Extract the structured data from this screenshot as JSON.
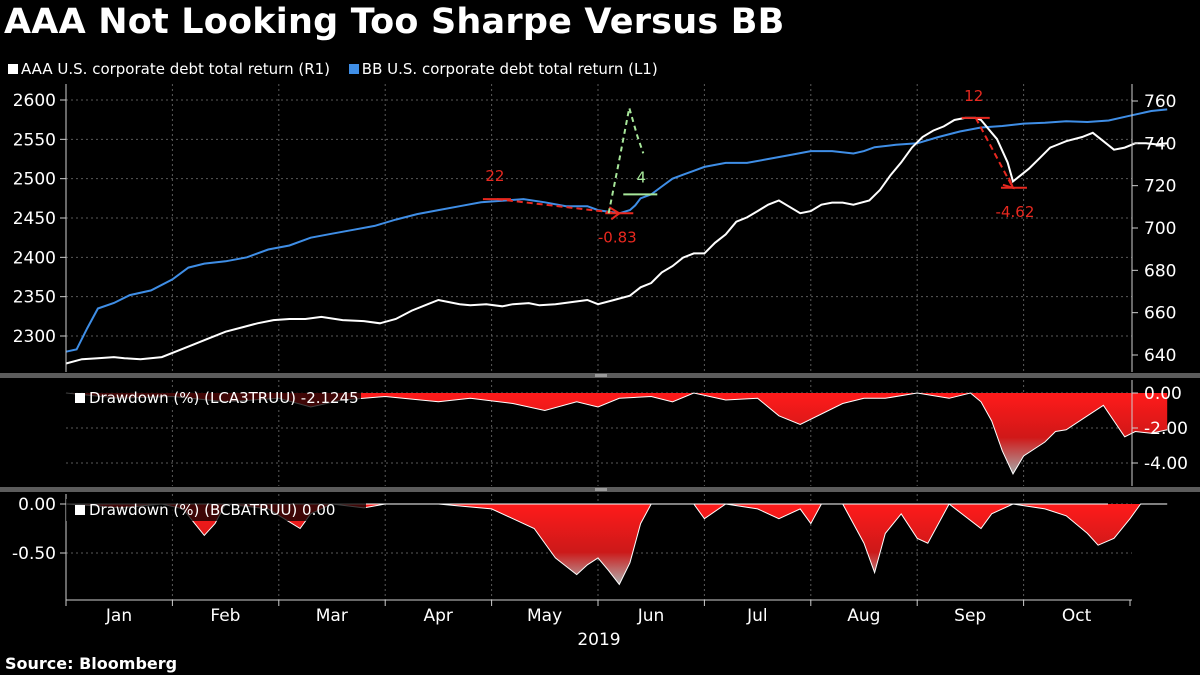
{
  "title": "AAA Not Looking Too Sharpe Versus BB",
  "source": "Source: Bloomberg",
  "colors": {
    "aaa": "#ffffff",
    "bb": "#3f8ee6",
    "drawdown": "#ff1a1a",
    "annotation_red": "#e8281f",
    "annotation_green": "#a7e79a"
  },
  "chart_data": [
    {
      "type": "line",
      "name": "main",
      "x_labels": [
        "Jan",
        "Feb",
        "Mar",
        "Apr",
        "May",
        "Jun",
        "Jul",
        "Aug",
        "Sep",
        "Oct"
      ],
      "x_year_label": "2019",
      "legend": [
        {
          "name": "AAA U.S. corporate debt total return (R1)",
          "color": "#ffffff"
        },
        {
          "name": "BB U.S. corporate debt total return (L1)",
          "color": "#3f8ee6"
        }
      ],
      "left_axis": {
        "ylim": [
          2275,
          2610
        ],
        "ticks": [
          2300,
          2350,
          2400,
          2450,
          2500,
          2550,
          2600
        ]
      },
      "right_axis": {
        "ylim": [
          629,
          763
        ],
        "ticks": [
          640,
          660,
          680,
          700,
          720,
          740,
          760
        ]
      },
      "series": [
        {
          "name": "AAA U.S. corporate debt total return (R1)",
          "axis": "right",
          "points": [
            [
              0.0,
              636
            ],
            [
              0.15,
              638
            ],
            [
              0.3,
              638.5
            ],
            [
              0.45,
              639
            ],
            [
              0.55,
              638.5
            ],
            [
              0.7,
              638
            ],
            [
              0.9,
              639
            ],
            [
              1.05,
              642
            ],
            [
              1.2,
              645
            ],
            [
              1.35,
              648
            ],
            [
              1.5,
              651
            ],
            [
              1.65,
              653
            ],
            [
              1.8,
              655
            ],
            [
              1.95,
              656.5
            ],
            [
              2.1,
              657
            ],
            [
              2.25,
              657
            ],
            [
              2.4,
              658
            ],
            [
              2.6,
              656.5
            ],
            [
              2.8,
              656
            ],
            [
              2.95,
              655
            ],
            [
              3.1,
              657
            ],
            [
              3.25,
              661
            ],
            [
              3.4,
              664
            ],
            [
              3.5,
              666
            ],
            [
              3.6,
              665
            ],
            [
              3.7,
              664
            ],
            [
              3.8,
              663.5
            ],
            [
              3.95,
              664
            ],
            [
              4.1,
              663
            ],
            [
              4.2,
              664
            ],
            [
              4.35,
              664.5
            ],
            [
              4.45,
              663.5
            ],
            [
              4.6,
              664
            ],
            [
              4.75,
              665
            ],
            [
              4.9,
              666
            ],
            [
              5.0,
              664
            ],
            [
              5.15,
              666
            ],
            [
              5.3,
              668
            ],
            [
              5.4,
              672
            ],
            [
              5.5,
              674
            ],
            [
              5.6,
              679
            ],
            [
              5.7,
              682
            ],
            [
              5.8,
              686
            ],
            [
              5.9,
              688
            ],
            [
              6.0,
              688
            ],
            [
              6.1,
              693
            ],
            [
              6.2,
              697
            ],
            [
              6.3,
              703
            ],
            [
              6.4,
              705
            ],
            [
              6.5,
              708
            ],
            [
              6.6,
              711
            ],
            [
              6.7,
              713
            ],
            [
              6.8,
              710
            ],
            [
              6.9,
              707
            ],
            [
              7.0,
              708
            ],
            [
              7.1,
              711
            ],
            [
              7.2,
              712
            ],
            [
              7.3,
              712
            ],
            [
              7.4,
              711
            ],
            [
              7.55,
              713
            ],
            [
              7.65,
              718
            ],
            [
              7.75,
              725
            ],
            [
              7.85,
              731
            ],
            [
              7.95,
              738
            ],
            [
              8.05,
              743
            ],
            [
              8.15,
              746
            ],
            [
              8.25,
              748
            ],
            [
              8.35,
              751
            ],
            [
              8.45,
              752
            ],
            [
              8.55,
              752
            ],
            [
              8.6,
              751
            ],
            [
              8.7,
              745
            ],
            [
              8.75,
              742
            ],
            [
              8.85,
              731
            ],
            [
              8.9,
              722
            ],
            [
              8.95,
              724
            ],
            [
              9.05,
              728
            ],
            [
              9.15,
              733
            ],
            [
              9.25,
              738
            ],
            [
              9.3,
              739
            ],
            [
              9.4,
              741
            ],
            [
              9.55,
              743
            ],
            [
              9.65,
              745
            ],
            [
              9.75,
              741
            ],
            [
              9.85,
              737
            ],
            [
              9.95,
              738
            ],
            [
              10.05,
              740
            ],
            [
              10.15,
              740
            ],
            [
              10.25,
              739.5
            ],
            [
              10.35,
              740
            ]
          ]
        },
        {
          "name": "BB U.S. corporate debt total return (L1)",
          "axis": "left",
          "points": [
            [
              0.0,
              2280
            ],
            [
              0.1,
              2283
            ],
            [
              0.2,
              2310
            ],
            [
              0.3,
              2335
            ],
            [
              0.45,
              2342
            ],
            [
              0.6,
              2352
            ],
            [
              0.8,
              2358
            ],
            [
              1.0,
              2372
            ],
            [
              1.15,
              2387
            ],
            [
              1.3,
              2392
            ],
            [
              1.5,
              2395
            ],
            [
              1.7,
              2400
            ],
            [
              1.9,
              2410
            ],
            [
              2.1,
              2415
            ],
            [
              2.3,
              2425
            ],
            [
              2.5,
              2430
            ],
            [
              2.7,
              2435
            ],
            [
              2.9,
              2440
            ],
            [
              3.1,
              2448
            ],
            [
              3.3,
              2455
            ],
            [
              3.5,
              2460
            ],
            [
              3.7,
              2465
            ],
            [
              3.9,
              2470
            ],
            [
              4.1,
              2472
            ],
            [
              4.3,
              2474
            ],
            [
              4.5,
              2470
            ],
            [
              4.7,
              2465
            ],
            [
              4.9,
              2465
            ],
            [
              5.0,
              2460
            ],
            [
              5.1,
              2458
            ],
            [
              5.2,
              2456
            ],
            [
              5.3,
              2460
            ],
            [
              5.35,
              2466
            ],
            [
              5.4,
              2475
            ],
            [
              5.5,
              2480
            ],
            [
              5.6,
              2490
            ],
            [
              5.7,
              2500
            ],
            [
              5.8,
              2505
            ],
            [
              5.9,
              2510
            ],
            [
              6.0,
              2515
            ],
            [
              6.2,
              2520
            ],
            [
              6.4,
              2520
            ],
            [
              6.6,
              2525
            ],
            [
              6.8,
              2530
            ],
            [
              7.0,
              2535
            ],
            [
              7.2,
              2535
            ],
            [
              7.4,
              2532
            ],
            [
              7.5,
              2535
            ],
            [
              7.6,
              2540
            ],
            [
              7.8,
              2543
            ],
            [
              8.0,
              2545
            ],
            [
              8.2,
              2553
            ],
            [
              8.4,
              2560
            ],
            [
              8.6,
              2565
            ],
            [
              8.8,
              2567
            ],
            [
              9.0,
              2570
            ],
            [
              9.2,
              2571
            ],
            [
              9.4,
              2573
            ],
            [
              9.6,
              2572
            ],
            [
              9.8,
              2574
            ],
            [
              10.0,
              2580
            ],
            [
              10.2,
              2586
            ],
            [
              10.35,
              2588
            ]
          ]
        }
      ],
      "annotations": [
        {
          "label": "22",
          "color": "red",
          "from": [
            4.05,
            2474
          ],
          "to": [
            5.2,
            2456
          ],
          "axis": "left"
        },
        {
          "label": "-0.83",
          "color": "red",
          "at": [
            5.2,
            2456
          ],
          "axis": "left"
        },
        {
          "label": "4",
          "color": "green",
          "from": [
            5.1,
            2456
          ],
          "to": [
            5.2,
            2590
          ],
          "axis": "left"
        },
        {
          "label": "12",
          "color": "red",
          "from": [
            8.55,
            752
          ],
          "to": [
            8.9,
            719
          ],
          "axis": "right"
        },
        {
          "label": "-4.62",
          "color": "red",
          "at": [
            8.9,
            719
          ],
          "axis": "right"
        }
      ]
    },
    {
      "type": "area",
      "name": "drawdown_aaa",
      "legend": "Drawdown (%) (LCA3TRUU) -2.1245",
      "right_axis": {
        "ylim": [
          -5.0,
          0.4
        ],
        "ticks": [
          "0.00",
          "-2.00",
          "-4.00"
        ]
      },
      "points": [
        [
          0,
          0
        ],
        [
          0.5,
          -0.3
        ],
        [
          1.0,
          -0.2
        ],
        [
          1.5,
          -0.5
        ],
        [
          2.0,
          -0.3
        ],
        [
          2.3,
          -0.8
        ],
        [
          2.6,
          -0.4
        ],
        [
          3.0,
          -0.2
        ],
        [
          3.5,
          -0.5
        ],
        [
          3.8,
          -0.3
        ],
        [
          4.2,
          -0.6
        ],
        [
          4.5,
          -1.0
        ],
        [
          4.8,
          -0.5
        ],
        [
          5.0,
          -0.8
        ],
        [
          5.2,
          -0.3
        ],
        [
          5.5,
          -0.2
        ],
        [
          5.7,
          -0.5
        ],
        [
          5.9,
          0
        ],
        [
          6.2,
          -0.4
        ],
        [
          6.5,
          -0.3
        ],
        [
          6.7,
          -1.3
        ],
        [
          6.9,
          -1.8
        ],
        [
          7.1,
          -1.2
        ],
        [
          7.3,
          -0.6
        ],
        [
          7.5,
          -0.3
        ],
        [
          7.7,
          -0.3
        ],
        [
          8.0,
          0
        ],
        [
          8.3,
          -0.3
        ],
        [
          8.5,
          0
        ],
        [
          8.6,
          -0.5
        ],
        [
          8.7,
          -1.6
        ],
        [
          8.8,
          -3.3
        ],
        [
          8.9,
          -4.62
        ],
        [
          9.0,
          -3.6
        ],
        [
          9.2,
          -2.8
        ],
        [
          9.3,
          -2.2
        ],
        [
          9.4,
          -2.1
        ],
        [
          9.6,
          -1.3
        ],
        [
          9.75,
          -0.7
        ],
        [
          9.85,
          -1.6
        ],
        [
          9.95,
          -2.5
        ],
        [
          10.05,
          -2.2
        ],
        [
          10.2,
          -2.3
        ],
        [
          10.35,
          -2.1
        ]
      ]
    },
    {
      "type": "area",
      "name": "drawdown_bb",
      "legend": "Drawdown (%) (BCBATRUU) 0.00",
      "left_axis": {
        "ylim": [
          -0.9,
          0.1
        ],
        "ticks": [
          "0.00",
          "-0.50"
        ]
      },
      "points": [
        [
          0,
          0
        ],
        [
          0.3,
          -0.02
        ],
        [
          0.5,
          -0.04
        ],
        [
          0.7,
          -0.02
        ],
        [
          0.9,
          0
        ],
        [
          1.1,
          -0.05
        ],
        [
          1.3,
          -0.32
        ],
        [
          1.4,
          -0.2
        ],
        [
          1.5,
          0
        ],
        [
          1.9,
          -0.05
        ],
        [
          2.2,
          -0.25
        ],
        [
          2.3,
          -0.1
        ],
        [
          2.5,
          0
        ],
        [
          2.8,
          -0.04
        ],
        [
          3.0,
          0
        ],
        [
          3.5,
          0
        ],
        [
          3.7,
          -0.02
        ],
        [
          4.0,
          -0.05
        ],
        [
          4.2,
          -0.15
        ],
        [
          4.4,
          -0.25
        ],
        [
          4.6,
          -0.55
        ],
        [
          4.8,
          -0.72
        ],
        [
          4.9,
          -0.62
        ],
        [
          5.0,
          -0.55
        ],
        [
          5.1,
          -0.68
        ],
        [
          5.2,
          -0.82
        ],
        [
          5.3,
          -0.6
        ],
        [
          5.4,
          -0.2
        ],
        [
          5.5,
          0
        ],
        [
          5.9,
          0
        ],
        [
          6.0,
          -0.15
        ],
        [
          6.2,
          0
        ],
        [
          6.5,
          -0.05
        ],
        [
          6.7,
          -0.15
        ],
        [
          6.9,
          -0.05
        ],
        [
          7.0,
          -0.2
        ],
        [
          7.1,
          0
        ],
        [
          7.3,
          0
        ],
        [
          7.5,
          -0.4
        ],
        [
          7.6,
          -0.7
        ],
        [
          7.7,
          -0.3
        ],
        [
          7.85,
          -0.1
        ],
        [
          8.0,
          -0.35
        ],
        [
          8.1,
          -0.4
        ],
        [
          8.3,
          0
        ],
        [
          8.6,
          -0.25
        ],
        [
          8.7,
          -0.1
        ],
        [
          8.9,
          0
        ],
        [
          9.2,
          -0.05
        ],
        [
          9.4,
          -0.12
        ],
        [
          9.6,
          -0.3
        ],
        [
          9.7,
          -0.42
        ],
        [
          9.85,
          -0.35
        ],
        [
          10.0,
          -0.15
        ],
        [
          10.1,
          0
        ],
        [
          10.35,
          0
        ]
      ]
    }
  ]
}
